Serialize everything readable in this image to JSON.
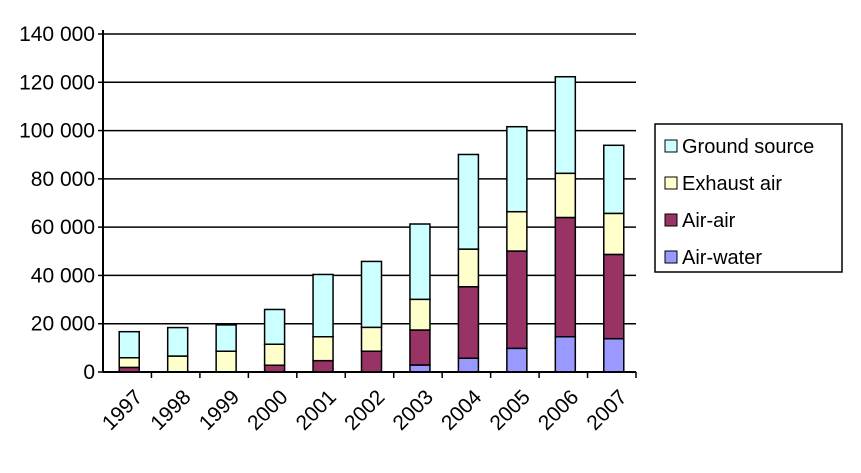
{
  "chart_data": {
    "type": "bar",
    "stacked": true,
    "categories": [
      "1997",
      "1998",
      "1999",
      "2000",
      "2001",
      "2002",
      "2003",
      "2004",
      "2005",
      "2006",
      "2007"
    ],
    "series": [
      {
        "name": "Air-water",
        "color": "#9999FF",
        "values": [
          0,
          0,
          0,
          0,
          0,
          0,
          2900,
          5700,
          9800,
          14600,
          13800
        ]
      },
      {
        "name": "Air-air",
        "color": "#993366",
        "values": [
          1900,
          0,
          0,
          2800,
          4700,
          8600,
          14500,
          29600,
          40300,
          49400,
          34900
        ]
      },
      {
        "name": "Exhaust air",
        "color": "#FFFFCC",
        "values": [
          4000,
          6600,
          8600,
          8700,
          9900,
          9900,
          12700,
          15600,
          16300,
          18300,
          17000
        ]
      },
      {
        "name": "Ground source",
        "color": "#CCFFFF",
        "values": [
          10800,
          11800,
          10900,
          14400,
          25800,
          27300,
          31200,
          39200,
          35200,
          40000,
          28200
        ]
      }
    ],
    "ylim": [
      0,
      140000
    ],
    "yticks": [
      "0",
      "20 000",
      "40 000",
      "60 000",
      "80 000",
      "100 000",
      "120 000",
      "140 000"
    ],
    "grid": true,
    "legend_position": "right",
    "legend_order": [
      "Ground source",
      "Exhaust air",
      "Air-air",
      "Air-water"
    ],
    "xlabel": "",
    "ylabel": ""
  }
}
